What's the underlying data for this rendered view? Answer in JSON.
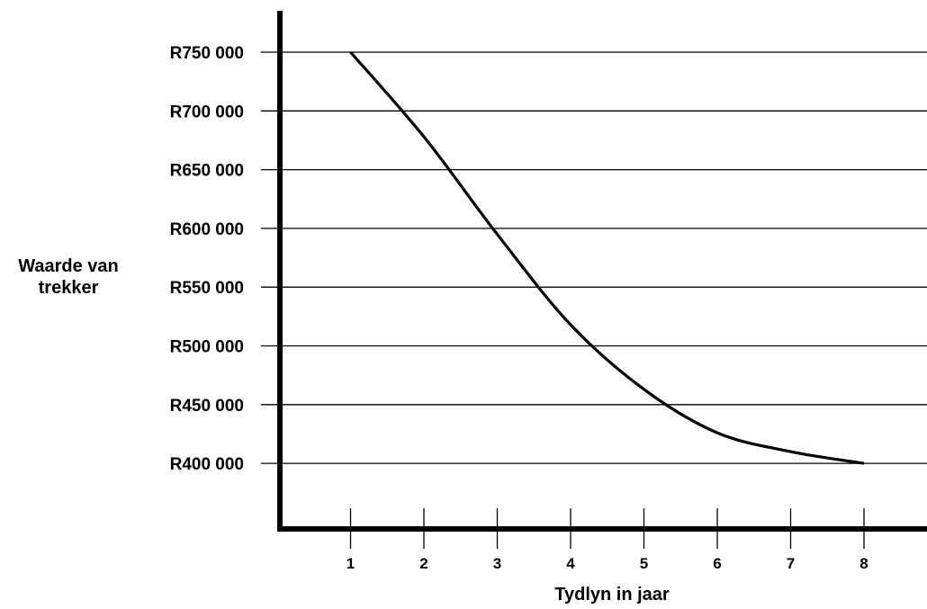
{
  "chart_data": {
    "type": "line",
    "xlabel": "Tydlyn in jaar",
    "ylabel_line1": "Waarde van",
    "ylabel_line2": "trekker",
    "x": [
      1,
      2,
      3,
      4,
      5,
      6,
      7,
      8
    ],
    "series": [
      {
        "values": [
          750000,
          678000,
          595000,
          518000,
          463000,
          426000,
          410000,
          400000
        ]
      }
    ],
    "x_ticks": [
      "1",
      "2",
      "3",
      "4",
      "5",
      "6",
      "7",
      "8"
    ],
    "y_ticks": [
      {
        "value": 750000,
        "label": "R750 000"
      },
      {
        "value": 700000,
        "label": "R700 000"
      },
      {
        "value": 650000,
        "label": "R650 000"
      },
      {
        "value": 600000,
        "label": "R600 000"
      },
      {
        "value": 550000,
        "label": "R550 000"
      },
      {
        "value": 500000,
        "label": "R500 000"
      },
      {
        "value": 450000,
        "label": "R450 000"
      },
      {
        "value": 400000,
        "label": "R400 000"
      }
    ],
    "ylim": [
      350000,
      750000
    ],
    "xlim": [
      0,
      8.5
    ],
    "grid": "horizontal",
    "line_color": "#000000"
  }
}
